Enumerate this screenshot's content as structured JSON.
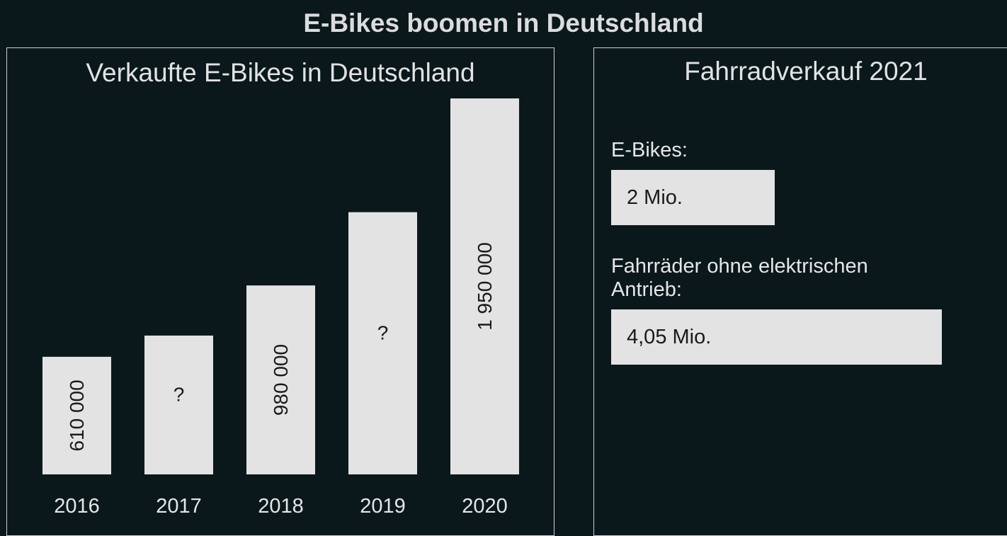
{
  "title": "E-Bikes boomen in Deutschland",
  "chart_data": {
    "type": "bar",
    "title": "Verkaufte E-Bikes in Deutschland",
    "categories": [
      "2016",
      "2017",
      "2018",
      "2019",
      "2020"
    ],
    "values": [
      610000,
      720000,
      980000,
      1360000,
      1950000
    ],
    "data_labels": [
      "610 000",
      "?",
      "980 000",
      "?",
      "1 950 000"
    ],
    "xlabel": "",
    "ylabel": "",
    "ylim": [
      0,
      1950000
    ],
    "grid": false,
    "bar_color": "#e3e3e3"
  },
  "side_panel": {
    "title": "Fahrradverkauf 2021",
    "items": [
      {
        "label": "E-Bikes:",
        "value_text": "2 Mio.",
        "value": 2
      },
      {
        "label": "Fahrräder ohne elektrischen Antrieb:",
        "value_text": "4,05 Mio.",
        "value": 4.05
      }
    ]
  }
}
